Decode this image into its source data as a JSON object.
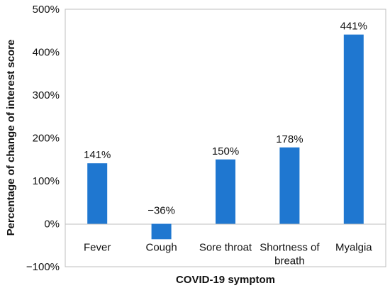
{
  "chart_data": {
    "type": "bar",
    "title": "",
    "xlabel": "COVID-19 symptom",
    "ylabel": "Percentage of change of interest score",
    "categories": [
      [
        "Fever"
      ],
      [
        "Cough"
      ],
      [
        "Sore throat"
      ],
      [
        "Shortness of",
        "breath"
      ],
      [
        "Myalgia"
      ]
    ],
    "values": [
      141,
      -36,
      150,
      178,
      441
    ],
    "data_labels": [
      "141%",
      "−36%",
      "150%",
      "178%",
      "441%"
    ],
    "ylim": [
      -100,
      500
    ],
    "yticks": [
      -100,
      0,
      100,
      200,
      300,
      400,
      500
    ],
    "ytick_labels": [
      "−100%",
      "0%",
      "100%",
      "200%",
      "300%",
      "400%",
      "500%"
    ],
    "bar_color": "#1f77d0",
    "grid": false,
    "legend": "none"
  }
}
